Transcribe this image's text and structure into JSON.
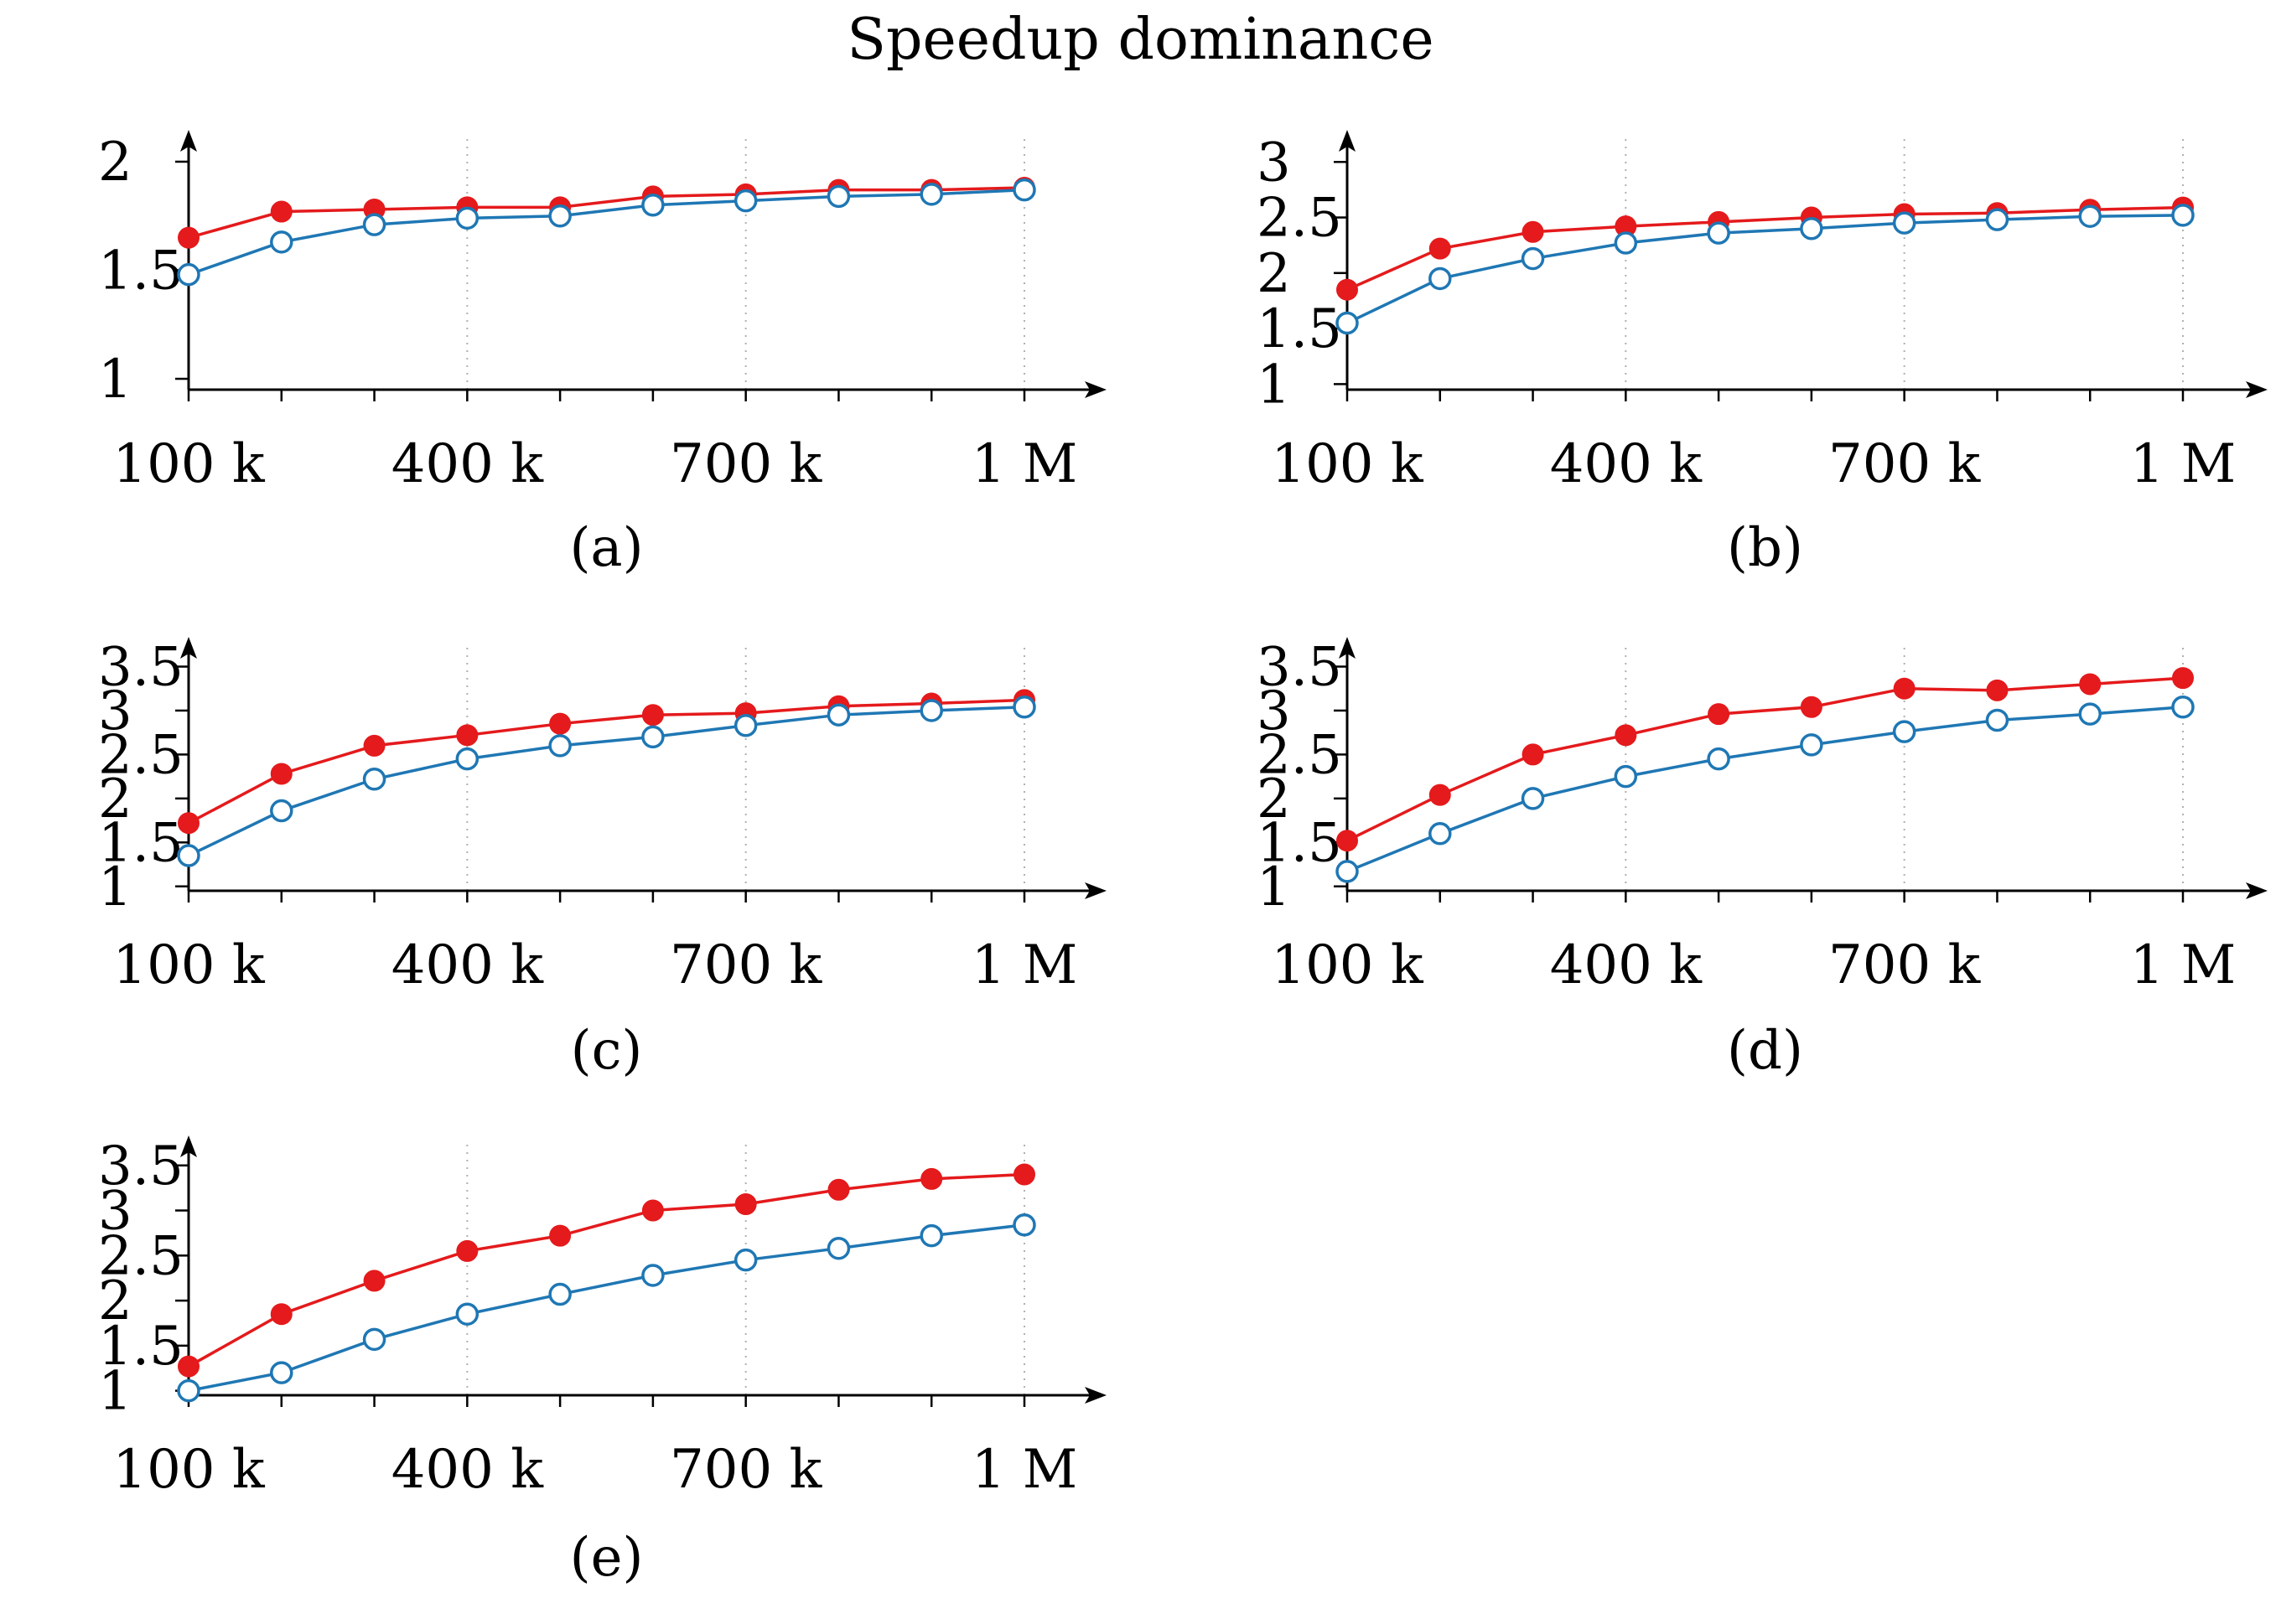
{
  "title": "Speedup dominance",
  "colors": {
    "red_series": "#e41a1c",
    "blue_series": "#1f77b4",
    "axis": "#000000",
    "grid": "#b0b0b0"
  },
  "chart_data": [
    {
      "type": "line",
      "caption": "(a)",
      "x": [
        100000,
        200000,
        300000,
        400000,
        500000,
        600000,
        700000,
        800000,
        900000,
        1000000
      ],
      "xticks": [
        100000,
        400000,
        700000,
        1000000
      ],
      "xtick_labels": [
        "100 k",
        "400 k",
        "700 k",
        "1 M"
      ],
      "ylim": [
        0.95,
        2.05
      ],
      "yticks": [
        1,
        1.5,
        2
      ],
      "ytick_labels": [
        "1",
        "1.5",
        "2"
      ],
      "series": [
        {
          "values": [
            1.65,
            1.77,
            1.78,
            1.79,
            1.79,
            1.84,
            1.85,
            1.87,
            1.87,
            1.88
          ],
          "color": "#e41a1c",
          "marker": "filled-circle"
        },
        {
          "values": [
            1.48,
            1.63,
            1.71,
            1.74,
            1.75,
            1.8,
            1.82,
            1.84,
            1.85,
            1.87
          ],
          "color": "#1f77b4",
          "marker": "open-circle"
        }
      ]
    },
    {
      "type": "line",
      "caption": "(b)",
      "x": [
        100000,
        200000,
        300000,
        400000,
        500000,
        600000,
        700000,
        800000,
        900000,
        1000000
      ],
      "xticks": [
        100000,
        400000,
        700000,
        1000000
      ],
      "xtick_labels": [
        "100 k",
        "400 k",
        "700 k",
        "1 M"
      ],
      "ylim": [
        0.95,
        3.1
      ],
      "yticks": [
        1,
        1.5,
        2,
        2.5,
        3
      ],
      "ytick_labels": [
        "1",
        "1.5",
        "2",
        "2.5",
        "3"
      ],
      "series": [
        {
          "values": [
            1.85,
            2.22,
            2.37,
            2.42,
            2.46,
            2.5,
            2.53,
            2.54,
            2.57,
            2.59
          ],
          "color": "#e41a1c",
          "marker": "filled-circle"
        },
        {
          "values": [
            1.55,
            1.95,
            2.13,
            2.27,
            2.36,
            2.4,
            2.45,
            2.48,
            2.51,
            2.52
          ],
          "color": "#1f77b4",
          "marker": "open-circle"
        }
      ]
    },
    {
      "type": "line",
      "caption": "(c)",
      "x": [
        100000,
        200000,
        300000,
        400000,
        500000,
        600000,
        700000,
        800000,
        900000,
        1000000
      ],
      "xticks": [
        100000,
        400000,
        700000,
        1000000
      ],
      "xtick_labels": [
        "100 k",
        "400 k",
        "700 k",
        "1 M"
      ],
      "ylim": [
        0.95,
        3.6
      ],
      "yticks": [
        1,
        1.5,
        2,
        2.5,
        3,
        3.5
      ],
      "ytick_labels": [
        "1",
        "1.5",
        "2",
        "2.5",
        "3",
        "3.5"
      ],
      "series": [
        {
          "values": [
            1.72,
            2.28,
            2.6,
            2.72,
            2.85,
            2.95,
            2.97,
            3.05,
            3.08,
            3.12
          ],
          "color": "#e41a1c",
          "marker": "filled-circle"
        },
        {
          "values": [
            1.35,
            1.86,
            2.22,
            2.45,
            2.6,
            2.7,
            2.83,
            2.95,
            3.0,
            3.04
          ],
          "color": "#1f77b4",
          "marker": "open-circle"
        }
      ]
    },
    {
      "type": "line",
      "caption": "(d)",
      "x": [
        100000,
        200000,
        300000,
        400000,
        500000,
        600000,
        700000,
        800000,
        900000,
        1000000
      ],
      "xticks": [
        100000,
        400000,
        700000,
        1000000
      ],
      "xtick_labels": [
        "100 k",
        "400 k",
        "700 k",
        "1 M"
      ],
      "ylim": [
        0.95,
        3.6
      ],
      "yticks": [
        1,
        1.5,
        2,
        2.5,
        3,
        3.5
      ],
      "ytick_labels": [
        "1",
        "1.5",
        "2",
        "2.5",
        "3",
        "3.5"
      ],
      "series": [
        {
          "values": [
            1.52,
            2.04,
            2.5,
            2.72,
            2.96,
            3.04,
            3.25,
            3.23,
            3.3,
            3.37
          ],
          "color": "#e41a1c",
          "marker": "filled-circle"
        },
        {
          "values": [
            1.17,
            1.6,
            2.0,
            2.25,
            2.45,
            2.61,
            2.76,
            2.89,
            2.96,
            3.04
          ],
          "color": "#1f77b4",
          "marker": "open-circle"
        }
      ]
    },
    {
      "type": "line",
      "caption": "(e)",
      "x": [
        100000,
        200000,
        300000,
        400000,
        500000,
        600000,
        700000,
        800000,
        900000,
        1000000
      ],
      "xticks": [
        100000,
        400000,
        700000,
        1000000
      ],
      "xtick_labels": [
        "100 k",
        "400 k",
        "700 k",
        "1 M"
      ],
      "ylim": [
        0.95,
        3.6
      ],
      "yticks": [
        1,
        1.5,
        2,
        2.5,
        3,
        3.5
      ],
      "ytick_labels": [
        "1",
        "1.5",
        "2",
        "2.5",
        "3",
        "3.5"
      ],
      "series": [
        {
          "values": [
            1.27,
            1.85,
            2.22,
            2.55,
            2.72,
            3.0,
            3.07,
            3.23,
            3.35,
            3.4
          ],
          "color": "#e41a1c",
          "marker": "filled-circle"
        },
        {
          "values": [
            1.0,
            1.2,
            1.57,
            1.85,
            2.07,
            2.28,
            2.45,
            2.58,
            2.72,
            2.84
          ],
          "color": "#1f77b4",
          "marker": "open-circle"
        }
      ]
    }
  ]
}
